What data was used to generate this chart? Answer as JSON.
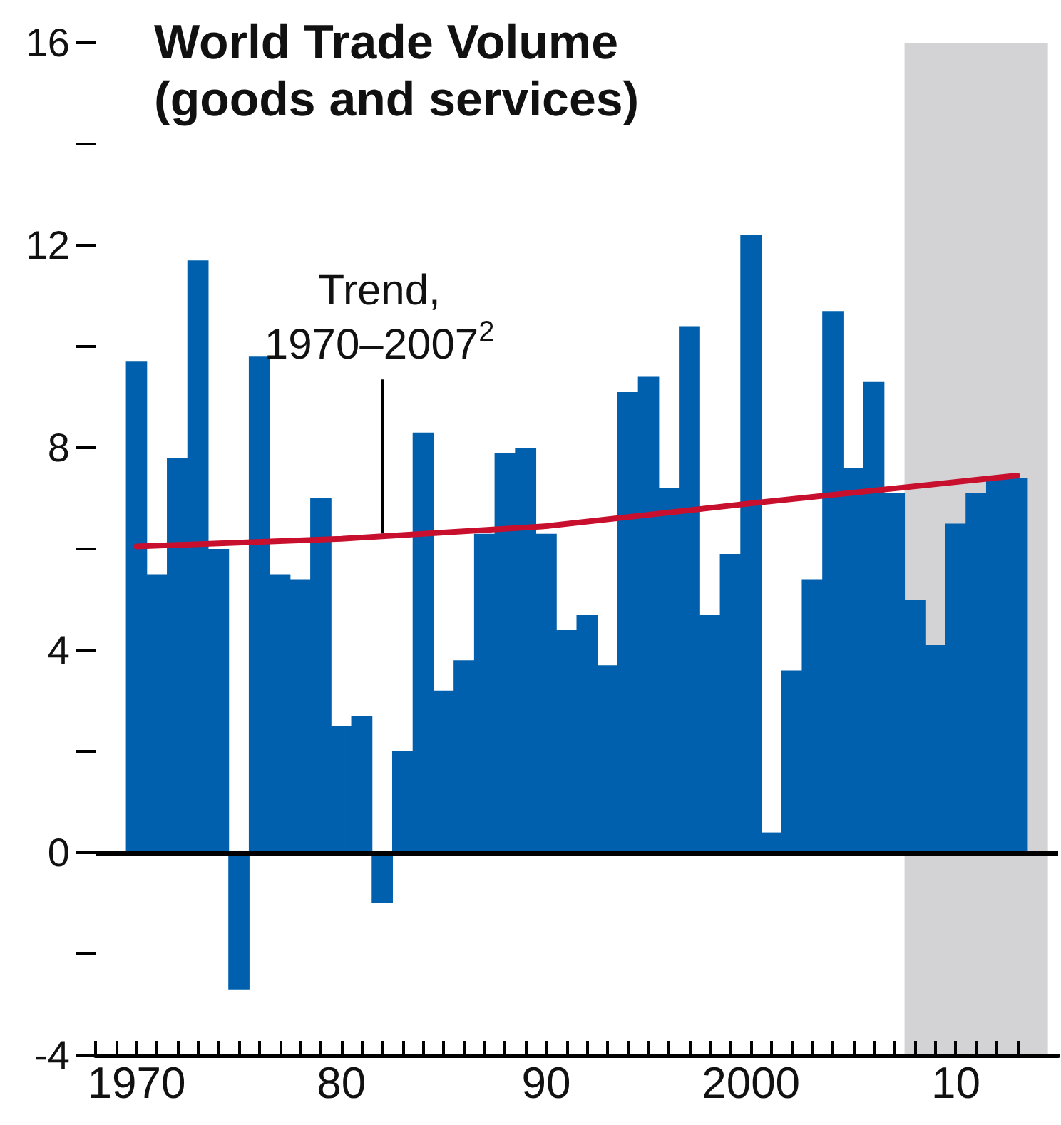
{
  "chart_data": {
    "type": "bar",
    "title": "World Trade Volume\n(goods and services)",
    "x": [
      1970,
      1971,
      1972,
      1973,
      1974,
      1975,
      1976,
      1977,
      1978,
      1979,
      1980,
      1981,
      1982,
      1983,
      1984,
      1985,
      1986,
      1987,
      1988,
      1989,
      1990,
      1991,
      1992,
      1993,
      1994,
      1995,
      1996,
      1997,
      1998,
      1999,
      2000,
      2001,
      2002,
      2003,
      2004,
      2005,
      2006,
      2007,
      2008,
      2009,
      2010,
      2011,
      2012,
      2013
    ],
    "series": [
      {
        "color": "#0060ae",
        "values": [
          9.7,
          5.5,
          7.8,
          11.7,
          6.0,
          -2.7,
          9.8,
          5.5,
          5.4,
          7.0,
          2.5,
          2.7,
          -1.0,
          2.0,
          8.3,
          3.2,
          3.8,
          6.3,
          7.9,
          8.0,
          6.3,
          4.4,
          4.7,
          3.7,
          9.1,
          9.4,
          7.2,
          10.4,
          4.7,
          5.9,
          12.2,
          0.4,
          3.6,
          5.4,
          10.7,
          7.6,
          9.3,
          7.1,
          5.0,
          4.1,
          6.5,
          7.1,
          7.4,
          7.4
        ]
      },
      {
        "type": "line",
        "color": "#c8102e",
        "x": [
          1970,
          1980,
          1990,
          2000,
          2013
        ],
        "values": [
          6.05,
          6.2,
          6.45,
          6.9,
          7.45
        ]
      }
    ],
    "xlim": [
      1968,
      2015
    ],
    "xticks": [
      {
        "value": 1968,
        "label": null
      },
      {
        "value": 1969,
        "label": null
      },
      {
        "value": 1970,
        "label": "1970"
      },
      {
        "value": 1971,
        "label": null
      },
      {
        "value": 1972,
        "label": null
      },
      {
        "value": 1973,
        "label": null
      },
      {
        "value": 1974,
        "label": null
      },
      {
        "value": 1975,
        "label": null
      },
      {
        "value": 1976,
        "label": null
      },
      {
        "value": 1977,
        "label": null
      },
      {
        "value": 1978,
        "label": null
      },
      {
        "value": 1979,
        "label": null
      },
      {
        "value": 1980,
        "label": "80"
      },
      {
        "value": 1981,
        "label": null
      },
      {
        "value": 1982,
        "label": null
      },
      {
        "value": 1983,
        "label": null
      },
      {
        "value": 1984,
        "label": null
      },
      {
        "value": 1985,
        "label": null
      },
      {
        "value": 1986,
        "label": null
      },
      {
        "value": 1987,
        "label": null
      },
      {
        "value": 1988,
        "label": null
      },
      {
        "value": 1989,
        "label": null
      },
      {
        "value": 1990,
        "label": "90"
      },
      {
        "value": 1991,
        "label": null
      },
      {
        "value": 1992,
        "label": null
      },
      {
        "value": 1993,
        "label": null
      },
      {
        "value": 1994,
        "label": null
      },
      {
        "value": 1995,
        "label": null
      },
      {
        "value": 1996,
        "label": null
      },
      {
        "value": 1997,
        "label": null
      },
      {
        "value": 1998,
        "label": null
      },
      {
        "value": 1999,
        "label": null
      },
      {
        "value": 2000,
        "label": "2000"
      },
      {
        "value": 2001,
        "label": null
      },
      {
        "value": 2002,
        "label": null
      },
      {
        "value": 2003,
        "label": null
      },
      {
        "value": 2004,
        "label": null
      },
      {
        "value": 2005,
        "label": null
      },
      {
        "value": 2006,
        "label": null
      },
      {
        "value": 2007,
        "label": null
      },
      {
        "value": 2008,
        "label": null
      },
      {
        "value": 2009,
        "label": null
      },
      {
        "value": 2010,
        "label": "10"
      },
      {
        "value": 2011,
        "label": null
      },
      {
        "value": 2012,
        "label": null
      },
      {
        "value": 2013,
        "label": null
      }
    ],
    "ylim": [
      -4,
      16
    ],
    "yticks": [
      -4,
      {
        "value": -2,
        "label": null
      },
      0,
      {
        "value": 2,
        "label": null
      },
      4,
      {
        "value": 6,
        "label": null
      },
      8,
      {
        "value": 10,
        "label": null
      },
      12,
      {
        "value": 14,
        "label": null
      },
      16
    ],
    "annotations": [
      {
        "text": "Trend,\n1970–2007$^{2}$",
        "x": 1982,
        "y": 6.25
      }
    ],
    "ref_lines": [
      {
        "axis": "y",
        "value": 0,
        "color": "#000000"
      }
    ],
    "bands": [
      {
        "axis": "x",
        "from": 2007.5,
        "to": 2014.5,
        "color": "#d3d3d5"
      }
    ],
    "grid": false
  }
}
